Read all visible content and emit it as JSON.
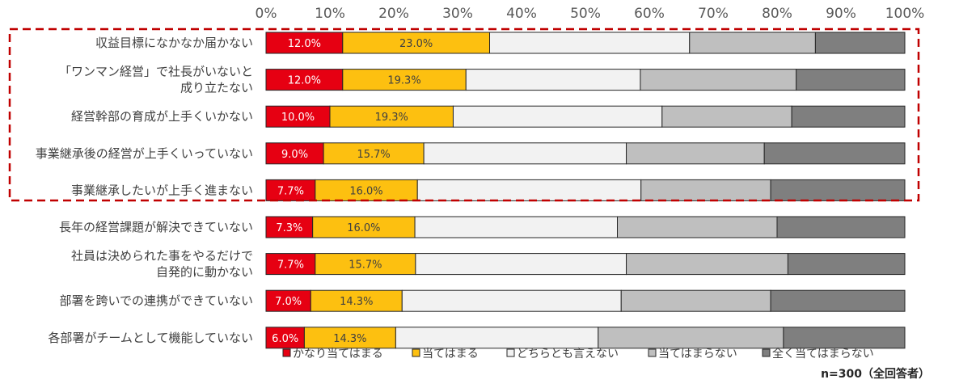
{
  "chart_data": {
    "type": "bar",
    "orientation": "horizontal",
    "stacked": true,
    "x_ticks": [
      "0%",
      "10%",
      "20%",
      "30%",
      "40%",
      "50%",
      "60%",
      "70%",
      "80%",
      "90%",
      "100%"
    ],
    "xlim": [
      0,
      100
    ],
    "categories": [
      [
        "収益目標になかなか届かない"
      ],
      [
        "「ワンマン経営」で社長がいないと",
        "成り立たない"
      ],
      [
        "経営幹部の育成が上手くいかない"
      ],
      [
        "事業継承後の経営が上手くいっていない"
      ],
      [
        "事業継承したいが上手く進まない"
      ],
      [
        "長年の経営課題が解決できていない"
      ],
      [
        "社員は決められた事をやるだけで",
        "自発的に動かない"
      ],
      [
        "部署を跨いでの連携ができていない"
      ],
      [
        "各部署がチームとして機能していない"
      ]
    ],
    "series": [
      {
        "name": "かなり当てはまる",
        "color": "#e60012",
        "label_color": "#ffffff",
        "values": [
          12.0,
          12.0,
          10.0,
          9.0,
          7.7,
          7.3,
          7.7,
          7.0,
          6.0
        ],
        "labels": [
          "12.0%",
          "12.0%",
          "10.0%",
          "9.0%",
          "7.7%",
          "7.3%",
          "7.7%",
          "7.0%",
          "6.0%"
        ]
      },
      {
        "name": "当てはまる",
        "color": "#fdc010",
        "label_color": "#404040",
        "values": [
          23.0,
          19.3,
          19.3,
          15.7,
          16.0,
          16.0,
          15.7,
          14.3,
          14.3
        ],
        "labels": [
          "23.0%",
          "19.3%",
          "19.3%",
          "15.7%",
          "16.0%",
          "16.0%",
          "15.7%",
          "14.3%",
          "14.3%"
        ]
      },
      {
        "name": "どちらとも言えない",
        "color": "#f2f2f2",
        "values": [
          31.3,
          27.3,
          32.7,
          31.7,
          35.0,
          31.7,
          33.0,
          34.3,
          31.7
        ]
      },
      {
        "name": "当てはまらない",
        "color": "#bfbfbf",
        "values": [
          19.7,
          24.4,
          20.3,
          21.6,
          20.3,
          25.0,
          25.3,
          23.4,
          29.0
        ]
      },
      {
        "name": "全く当てはまらない",
        "color": "#7f7f7f",
        "values": [
          14.0,
          17.0,
          17.7,
          22.0,
          21.0,
          20.0,
          18.3,
          21.0,
          19.0
        ]
      }
    ],
    "highlight": {
      "border_color": "#c00000",
      "style": "dashed",
      "categories": [
        0,
        1,
        2,
        3,
        4
      ]
    },
    "legend_position": "bottom",
    "grid": false,
    "note": "n=300（全回答者）"
  }
}
